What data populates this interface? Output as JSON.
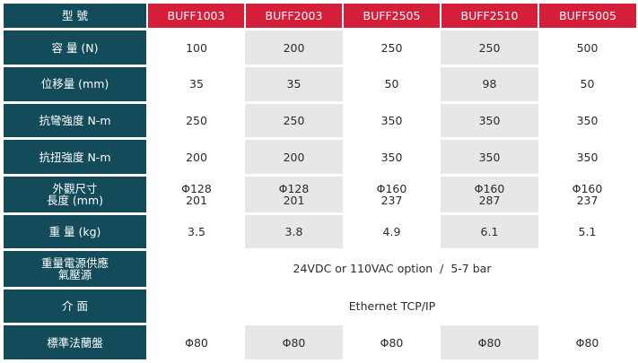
{
  "header": {
    "label": "型 號",
    "models": [
      "BUFF1003",
      "BUFF2003",
      "BUFF2505",
      "BUFF2510",
      "BUFF5005"
    ]
  },
  "rows": {
    "capacity": {
      "label": "容 量 (N)",
      "values": [
        "100",
        "200",
        "250",
        "250",
        "500"
      ]
    },
    "displacement": {
      "label": "位移量 (mm)",
      "values": [
        "35",
        "35",
        "50",
        "98",
        "50"
      ]
    },
    "bending": {
      "label": "抗彎強度 N-m",
      "values": [
        "250",
        "250",
        "350",
        "350",
        "350"
      ]
    },
    "torsion": {
      "label": "抗扭強度 N-m",
      "values": [
        "200",
        "200",
        "350",
        "350",
        "350"
      ]
    },
    "dimensions": {
      "label_line1": "外觀尺寸",
      "label_line2": "長度 (mm)",
      "values": [
        {
          "line1": "Φ128",
          "line2": "201"
        },
        {
          "line1": "Φ128",
          "line2": "201"
        },
        {
          "line1": "Φ160",
          "line2": "237"
        },
        {
          "line1": "Φ160",
          "line2": "287"
        },
        {
          "line1": "Φ160",
          "line2": "237"
        }
      ]
    },
    "weight": {
      "label": "重 量 (kg)",
      "values": [
        "3.5",
        "3.8",
        "4.9",
        "6.1",
        "5.1"
      ]
    },
    "power": {
      "label_line1": "重量電源供應",
      "label_line2": "氣壓源",
      "value": "24VDC or 110VAC option  /  5-7 bar"
    },
    "interface": {
      "label": "介 面",
      "value": "Ethernet TCP/IP"
    },
    "flange": {
      "label": "標準法蘭盤",
      "values": [
        "Φ80",
        "Φ80",
        "Φ80",
        "Φ80",
        "Φ80"
      ]
    }
  }
}
